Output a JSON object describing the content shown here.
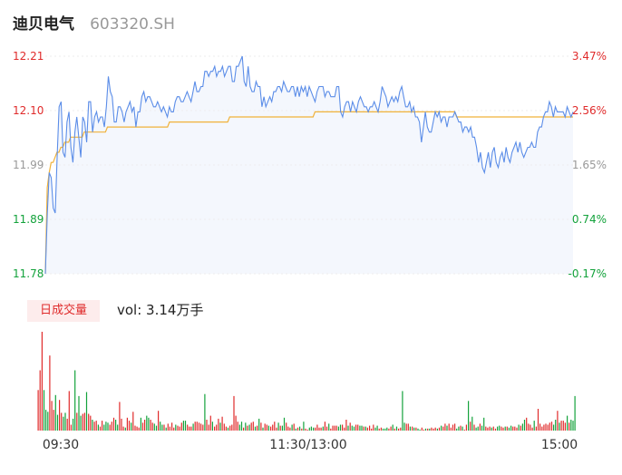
{
  "header": {
    "name": "迪贝电气",
    "code": "603320.SH"
  },
  "volume_label": {
    "badge": "日成交量",
    "text": "vol: 3.14万手"
  },
  "colors": {
    "price_line": "#5b8de8",
    "avg_line": "#f0b23a",
    "up": "#e02b2b",
    "down": "#13a23b",
    "neutral": "#999999",
    "area": "#f4f7fd"
  },
  "chart_data": [
    {
      "type": "line",
      "title": "",
      "x_ticks": [
        "09:30",
        "11:30/13:00",
        "15:00"
      ],
      "y_left_ticks": [
        "12.21",
        "12.10",
        "11.99",
        "11.89",
        "11.78"
      ],
      "y_right_ticks": [
        "3.47%",
        "2.56%",
        "1.65%",
        "0.74%",
        "-0.17%"
      ],
      "ylim": [
        11.78,
        12.21
      ],
      "x_range": [
        0,
        240
      ],
      "series": [
        {
          "values": [
            11.78,
            11.9,
            11.98,
            11.97,
            11.91,
            11.9,
            12.01,
            12.11,
            12.12,
            12.02,
            12.01,
            12.08,
            12.1,
            12.03,
            12.0,
            12.06,
            12.09,
            12.05,
            12.01,
            12.09,
            12.08,
            12.04,
            12.12,
            12.12,
            12.06,
            12.09,
            12.1,
            12.08,
            12.09,
            12.09,
            12.07,
            12.11,
            12.17,
            12.14,
            12.13,
            12.08,
            12.08,
            12.11,
            12.11,
            12.1,
            12.08,
            12.1,
            12.11,
            12.12,
            12.1,
            12.11,
            12.07,
            12.1,
            12.1,
            12.13,
            12.14,
            12.12,
            12.13,
            12.13,
            12.12,
            12.11,
            12.11,
            12.12,
            12.11,
            12.1,
            12.11,
            12.1,
            12.09,
            12.11,
            12.1,
            12.1,
            12.12,
            12.13,
            12.13,
            12.12,
            12.12,
            12.13,
            12.14,
            12.13,
            12.12,
            12.14,
            12.16,
            12.14,
            12.14,
            12.15,
            12.15,
            12.18,
            12.18,
            12.17,
            12.18,
            12.18,
            12.19,
            12.17,
            12.18,
            12.18,
            12.19,
            12.17,
            12.18,
            12.19,
            12.19,
            12.16,
            12.16,
            12.19,
            12.19,
            12.2,
            12.21,
            12.16,
            12.15,
            12.19,
            12.15,
            12.14,
            12.14,
            12.16,
            12.15,
            12.15,
            12.11,
            12.13,
            12.11,
            12.12,
            12.13,
            12.12,
            12.14,
            12.14,
            12.15,
            12.15,
            12.14,
            12.16,
            12.15,
            12.14,
            12.14,
            12.15,
            12.15,
            12.13,
            12.15,
            12.13,
            12.15,
            12.14,
            12.15,
            12.13,
            12.15,
            12.14,
            12.13,
            12.12,
            12.14,
            12.15,
            12.15,
            12.15,
            12.13,
            12.14,
            12.14,
            12.13,
            12.13,
            12.13,
            12.15,
            12.15,
            12.1,
            12.09,
            12.11,
            12.12,
            12.12,
            12.1,
            12.12,
            12.11,
            12.1,
            12.12,
            12.13,
            12.12,
            12.11,
            12.11,
            12.1,
            12.11,
            12.11,
            12.12,
            12.11,
            12.1,
            12.12,
            12.15,
            12.14,
            12.13,
            12.11,
            12.12,
            12.13,
            12.12,
            12.13,
            12.12,
            12.14,
            12.15,
            12.13,
            12.11,
            12.11,
            12.12,
            12.1,
            12.11,
            12.09,
            12.09,
            12.08,
            12.04,
            12.07,
            12.1,
            12.07,
            12.06,
            12.06,
            12.08,
            12.1,
            12.09,
            12.1,
            12.08,
            12.09,
            12.09,
            12.07,
            12.09,
            12.09,
            12.09,
            12.1,
            12.09,
            12.08,
            12.08,
            12.06,
            12.07,
            12.07,
            12.06,
            12.07,
            12.05,
            12.05,
            12.03,
            12.0,
            12.02,
            11.99,
            11.98,
            12.0,
            12.02,
            11.99,
            12.02,
            12.03,
            12.0,
            11.99,
            12.01,
            12.02,
            12.0,
            12.03,
            12.01,
            12.0,
            12.02,
            12.03,
            12.04,
            12.02,
            12.04,
            12.02,
            12.01,
            12.02,
            12.03,
            12.03,
            12.04,
            12.03,
            12.03,
            12.06,
            12.07,
            12.07,
            12.09,
            12.1,
            12.1,
            12.12,
            12.11,
            12.09,
            12.11,
            12.1,
            12.1,
            12.1,
            12.1,
            12.09,
            12.11,
            12.1,
            12.09,
            12.1
          ]
        },
        {
          "values": [
            11.78,
            11.95,
            11.98,
            12.0,
            12.0,
            12.01,
            12.02,
            12.02,
            12.03,
            12.03,
            12.04,
            12.04,
            12.04,
            12.05,
            12.05,
            12.05,
            12.05,
            12.05,
            12.05,
            12.05,
            12.06,
            12.06,
            12.06,
            12.06,
            12.06,
            12.06,
            12.06,
            12.06,
            12.06,
            12.06,
            12.06,
            12.06,
            12.07,
            12.07,
            12.07,
            12.07,
            12.07,
            12.07,
            12.07,
            12.07,
            12.07,
            12.07,
            12.07,
            12.07,
            12.07,
            12.07,
            12.07,
            12.07,
            12.07,
            12.07,
            12.07,
            12.07,
            12.07,
            12.07,
            12.07,
            12.07,
            12.07,
            12.07,
            12.07,
            12.07,
            12.07,
            12.07,
            12.07,
            12.07,
            12.08,
            12.08,
            12.08,
            12.08,
            12.08,
            12.08,
            12.08,
            12.08,
            12.08,
            12.08,
            12.08,
            12.08,
            12.08,
            12.08,
            12.08,
            12.08,
            12.08,
            12.08,
            12.08,
            12.08,
            12.08,
            12.08,
            12.08,
            12.08,
            12.08,
            12.08,
            12.08,
            12.08,
            12.08,
            12.08,
            12.08,
            12.09,
            12.09,
            12.09,
            12.09,
            12.09,
            12.09,
            12.09,
            12.09,
            12.09,
            12.09,
            12.09,
            12.09,
            12.09,
            12.09,
            12.09,
            12.09,
            12.09,
            12.09,
            12.09,
            12.09,
            12.09,
            12.09,
            12.09,
            12.09,
            12.09,
            12.09,
            12.09,
            12.09,
            12.09,
            12.09,
            12.09,
            12.09,
            12.09,
            12.09,
            12.09,
            12.09,
            12.09,
            12.09,
            12.09,
            12.09,
            12.09,
            12.09,
            12.09,
            12.09,
            12.1,
            12.1,
            12.1,
            12.1,
            12.1,
            12.1,
            12.1,
            12.1,
            12.1,
            12.1,
            12.1,
            12.1,
            12.1,
            12.1,
            12.1,
            12.1,
            12.1,
            12.1,
            12.1,
            12.1,
            12.1,
            12.1,
            12.1,
            12.1,
            12.1,
            12.1,
            12.1,
            12.1,
            12.1,
            12.1,
            12.1,
            12.1,
            12.1,
            12.1,
            12.1,
            12.1,
            12.1,
            12.1,
            12.1,
            12.1,
            12.1,
            12.1,
            12.1,
            12.1,
            12.1,
            12.1,
            12.1,
            12.1,
            12.1,
            12.1,
            12.1,
            12.1,
            12.1,
            12.1,
            12.1,
            12.1,
            12.1,
            12.1,
            12.1,
            12.1,
            12.1,
            12.1,
            12.1,
            12.1,
            12.1,
            12.1,
            12.1,
            12.1,
            12.1,
            12.1,
            12.1,
            12.1,
            12.1,
            12.09,
            12.09,
            12.09,
            12.09,
            12.09,
            12.09,
            12.09,
            12.09,
            12.09,
            12.09,
            12.09,
            12.09,
            12.09,
            12.09,
            12.09,
            12.09,
            12.09,
            12.09,
            12.09,
            12.09,
            12.09,
            12.09,
            12.09,
            12.09,
            12.09,
            12.09,
            12.09,
            12.09,
            12.09,
            12.09,
            12.09,
            12.09,
            12.09,
            12.09,
            12.09,
            12.09,
            12.09,
            12.09,
            12.09,
            12.09,
            12.09,
            12.09,
            12.09,
            12.09,
            12.09,
            12.09,
            12.09,
            12.09,
            12.09,
            12.09,
            12.09,
            12.09,
            12.09,
            12.09,
            12.09,
            12.09,
            12.09,
            12.09,
            12.09,
            12.09,
            12.09
          ]
        }
      ]
    },
    {
      "type": "bar",
      "title": "",
      "series": [
        {
          "values": [
            0.41,
            0.61,
            1.0,
            0.41,
            0.21,
            0.19,
            0.76,
            0.3,
            0.21,
            0.36,
            0.16,
            0.31,
            0.18,
            0.14,
            0.18,
            0.12,
            0.4,
            0.06,
            0.12,
            0.61,
            0.18,
            0.35,
            0.15,
            0.17,
            0.18,
            0.39,
            0.17,
            0.15,
            0.11,
            0.09,
            0.1,
            0.06,
            0.04,
            0.1,
            0.06,
            0.09,
            0.08,
            0.06,
            0.09,
            0.13,
            0.11,
            0.06,
            0.29,
            0.12,
            0.04,
            0.03,
            0.13,
            0.1,
            0.08,
            0.19,
            0.05,
            0.04,
            0.03,
            0.13,
            0.08,
            0.11,
            0.15,
            0.13,
            0.11,
            0.08,
            0.07,
            0.05,
            0.2,
            0.09,
            0.06,
            0.06,
            0.03,
            0.07,
            0.04,
            0.08,
            0.03,
            0.06,
            0.05,
            0.04,
            0.08,
            0.1,
            0.1,
            0.06,
            0.04,
            0.04,
            0.07,
            0.09,
            0.09,
            0.08,
            0.07,
            0.06,
            0.37,
            0.11,
            0.06,
            0.15,
            0.09,
            0.04,
            0.06,
            0.12,
            0.08,
            0.14,
            0.07,
            0.04,
            0.03,
            0.05,
            0.06,
            0.35,
            0.15,
            0.09,
            0.06,
            0.09,
            0.03,
            0.08,
            0.05,
            0.06,
            0.08,
            0.09,
            0.04,
            0.05,
            0.12,
            0.08,
            0.03,
            0.07,
            0.06,
            0.05,
            0.04,
            0.06,
            0.09,
            0.03,
            0.08,
            0.05,
            0.05,
            0.13,
            0.08,
            0.04,
            0.03,
            0.06,
            0.07,
            0.02,
            0.03,
            0.04,
            0.02,
            0.09,
            0.02,
            0.01,
            0.03,
            0.04,
            0.03,
            0.03,
            0.06,
            0.03,
            0.03,
            0.04,
            0.09,
            0.04,
            0.07,
            0.02,
            0.05,
            0.05,
            0.05,
            0.04,
            0.06,
            0.06,
            0.03,
            0.11,
            0.05,
            0.08,
            0.05,
            0.04,
            0.06,
            0.06,
            0.05,
            0.05,
            0.04,
            0.04,
            0.03,
            0.05,
            0.02,
            0.06,
            0.03,
            0.05,
            0.02,
            0.03,
            0.02,
            0.02,
            0.03,
            0.02,
            0.04,
            0.06,
            0.02,
            0.04,
            0.02,
            0.03,
            0.4,
            0.08,
            0.07,
            0.07,
            0.04,
            0.04,
            0.03,
            0.03,
            0.02,
            0.01,
            0.03,
            0.01,
            0.02,
            0.02,
            0.02,
            0.03,
            0.02,
            0.03,
            0.02,
            0.03,
            0.05,
            0.04,
            0.07,
            0.05,
            0.07,
            0.03,
            0.06,
            0.07,
            0.02,
            0.04,
            0.05,
            0.04,
            0.01,
            0.06,
            0.3,
            0.09,
            0.14,
            0.06,
            0.03,
            0.04,
            0.07,
            0.05,
            0.13,
            0.04,
            0.03,
            0.04,
            0.03,
            0.04,
            0.02,
            0.04,
            0.05,
            0.04,
            0.03,
            0.04,
            0.04,
            0.03,
            0.05,
            0.04,
            0.04,
            0.03,
            0.06,
            0.05,
            0.07,
            0.11,
            0.13,
            0.07,
            0.06,
            0.03,
            0.1,
            0.04,
            0.22,
            0.07,
            0.04,
            0.06,
            0.07,
            0.06,
            0.08,
            0.09,
            0.06,
            0.11,
            0.2,
            0.08,
            0.1,
            0.1,
            0.08,
            0.15,
            0.08,
            0.11,
            0.1,
            0.35
          ]
        }
      ]
    }
  ]
}
